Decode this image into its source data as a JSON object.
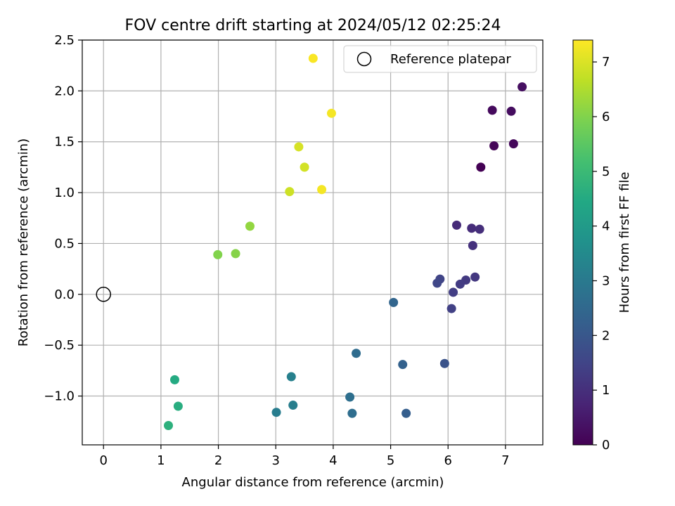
{
  "chart_data": {
    "type": "scatter",
    "title": "FOV centre drift starting at 2024/05/12 02:25:24",
    "xlabel": "Angular distance from reference (arcmin)",
    "ylabel": "Rotation from reference (arcmin)",
    "xlim": [
      -0.37,
      7.65
    ],
    "ylim": [
      -1.48,
      2.5
    ],
    "xticks": [
      0,
      1,
      2,
      3,
      4,
      5,
      6,
      7
    ],
    "yticks": [
      -1.0,
      -0.5,
      0.0,
      0.5,
      1.0,
      1.5,
      2.0,
      2.5
    ],
    "xtick_labels": [
      "0",
      "1",
      "2",
      "3",
      "4",
      "5",
      "6",
      "7"
    ],
    "ytick_labels": [
      "−1.0",
      "−0.5",
      "0.0",
      "0.5",
      "1.0",
      "1.5",
      "2.0",
      "2.5"
    ],
    "grid": true,
    "legend": {
      "label": "Reference platepar",
      "placement": "top-right"
    },
    "reference_point": {
      "x": 0,
      "y": 0
    },
    "colorbar": {
      "label": "Hours from first FF file",
      "min": 0,
      "max": 7.4,
      "ticks": [
        0,
        1,
        2,
        3,
        4,
        5,
        6,
        7
      ],
      "colormap": "viridis"
    },
    "points": [
      {
        "x": 6.57,
        "y": 1.25,
        "hours": 0.0
      },
      {
        "x": 6.8,
        "y": 1.46,
        "hours": 0.1
      },
      {
        "x": 7.14,
        "y": 1.48,
        "hours": 0.15
      },
      {
        "x": 6.77,
        "y": 1.81,
        "hours": 0.2
      },
      {
        "x": 7.1,
        "y": 1.8,
        "hours": 0.25
      },
      {
        "x": 7.29,
        "y": 2.04,
        "hours": 0.3
      },
      {
        "x": 6.15,
        "y": 0.68,
        "hours": 0.9
      },
      {
        "x": 6.41,
        "y": 0.65,
        "hours": 0.95
      },
      {
        "x": 6.55,
        "y": 0.64,
        "hours": 1.0
      },
      {
        "x": 6.43,
        "y": 0.48,
        "hours": 1.05
      },
      {
        "x": 6.47,
        "y": 0.17,
        "hours": 1.2
      },
      {
        "x": 6.31,
        "y": 0.14,
        "hours": 1.25
      },
      {
        "x": 6.21,
        "y": 0.1,
        "hours": 1.3
      },
      {
        "x": 6.09,
        "y": 0.02,
        "hours": 1.35
      },
      {
        "x": 6.06,
        "y": -0.14,
        "hours": 1.4
      },
      {
        "x": 5.86,
        "y": 0.15,
        "hours": 1.5
      },
      {
        "x": 5.81,
        "y": 0.11,
        "hours": 1.55
      },
      {
        "x": 5.94,
        "y": -0.68,
        "hours": 1.9
      },
      {
        "x": 5.27,
        "y": -1.17,
        "hours": 2.2
      },
      {
        "x": 5.21,
        "y": -0.69,
        "hours": 2.3
      },
      {
        "x": 5.05,
        "y": -0.08,
        "hours": 2.4
      },
      {
        "x": 4.4,
        "y": -0.58,
        "hours": 2.6
      },
      {
        "x": 4.33,
        "y": -1.17,
        "hours": 2.65
      },
      {
        "x": 4.29,
        "y": -1.01,
        "hours": 2.7
      },
      {
        "x": 3.01,
        "y": -1.16,
        "hours": 3.1
      },
      {
        "x": 3.3,
        "y": -1.09,
        "hours": 3.15
      },
      {
        "x": 3.27,
        "y": -0.81,
        "hours": 3.2
      },
      {
        "x": 1.24,
        "y": -0.84,
        "hours": 4.5
      },
      {
        "x": 1.3,
        "y": -1.1,
        "hours": 4.6
      },
      {
        "x": 1.13,
        "y": -1.29,
        "hours": 4.7
      },
      {
        "x": 1.99,
        "y": 0.39,
        "hours": 6.0
      },
      {
        "x": 2.3,
        "y": 0.4,
        "hours": 6.05
      },
      {
        "x": 2.55,
        "y": 0.67,
        "hours": 6.2
      },
      {
        "x": 3.24,
        "y": 1.01,
        "hours": 6.85
      },
      {
        "x": 3.5,
        "y": 1.25,
        "hours": 6.9
      },
      {
        "x": 3.4,
        "y": 1.45,
        "hours": 6.95
      },
      {
        "x": 3.8,
        "y": 1.03,
        "hours": 7.3
      },
      {
        "x": 3.97,
        "y": 1.78,
        "hours": 7.3
      },
      {
        "x": 3.65,
        "y": 2.32,
        "hours": 7.35
      }
    ]
  }
}
